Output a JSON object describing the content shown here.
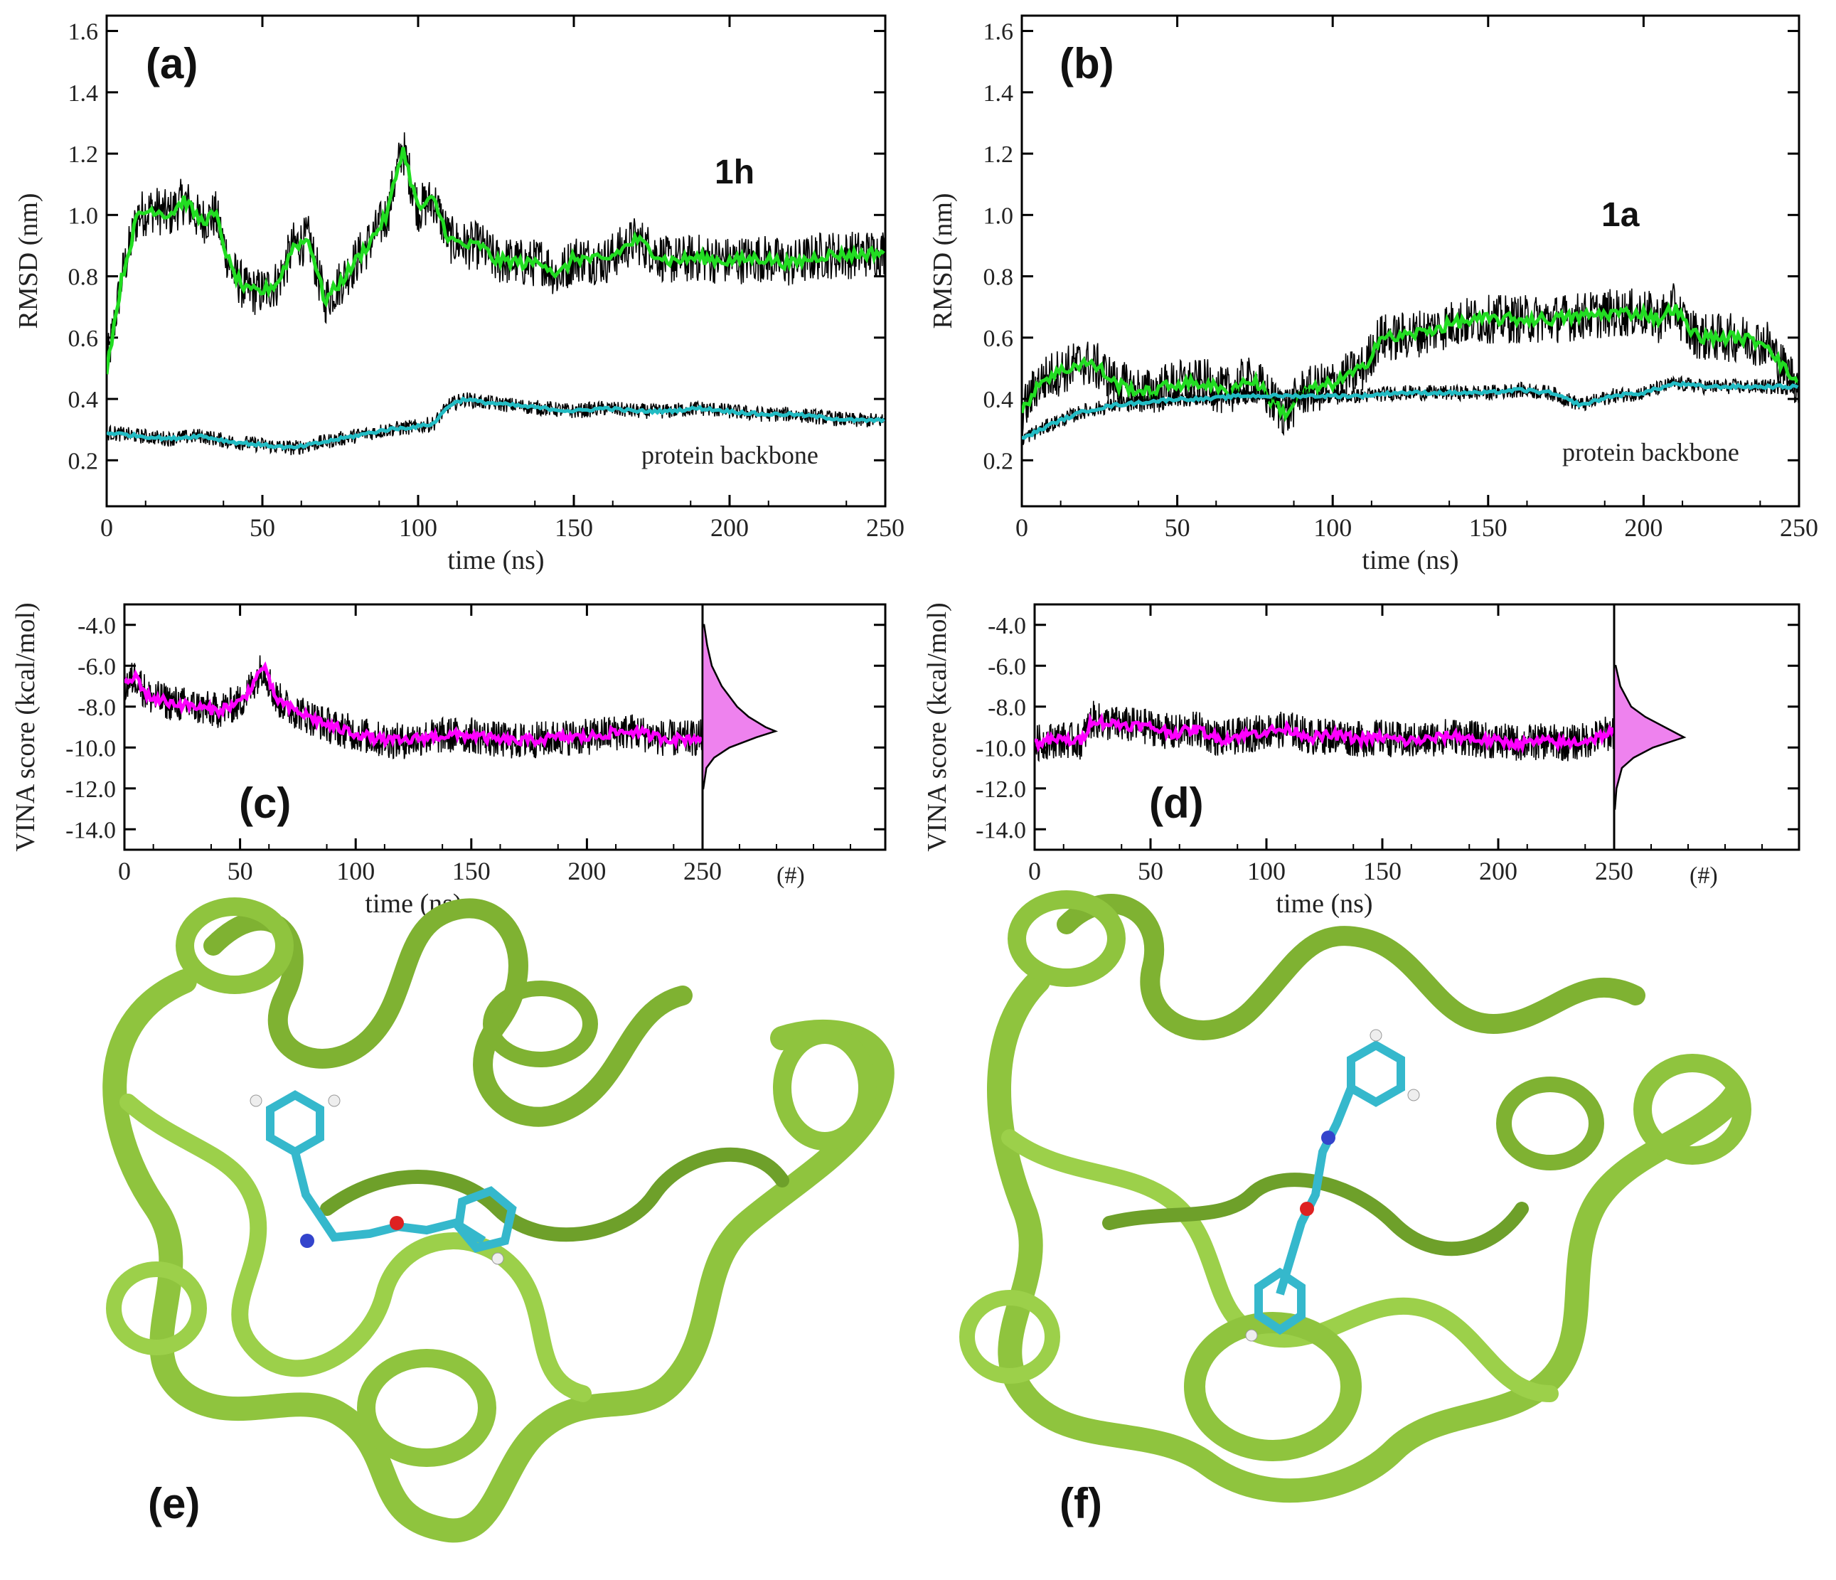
{
  "colors": {
    "raw": "#000000",
    "ligand": "#22dd22",
    "backbone": "#22bcc4",
    "vina": "#ff00ff",
    "hist_fill": "#ee82ee",
    "protein": "#8fc43e",
    "protein_dark": "#5a8a1e",
    "ligand_carbon": "#35b8cc",
    "ligand_n": "#3344cc",
    "ligand_o": "#dd2222",
    "ligand_h": "#eeeeee"
  },
  "panels": {
    "a": {
      "label": "(a)",
      "molecule": "1h",
      "annotation": "protein backbone"
    },
    "b": {
      "label": "(b)",
      "molecule": "1a",
      "annotation": "protein backbone"
    },
    "c": {
      "label": "(c)",
      "hist_label": "(#)"
    },
    "d": {
      "label": "(d)",
      "hist_label": "(#)"
    },
    "e": {
      "label": "(e)"
    },
    "f": {
      "label": "(f)"
    }
  },
  "chart_data": [
    {
      "id": "a",
      "type": "line",
      "xlabel": "time (ns)",
      "ylabel": "RMSD (nm)",
      "xlim": [
        0,
        250
      ],
      "ylim": [
        0.05,
        1.65
      ],
      "xticks": [
        "0",
        "50",
        "100",
        "150",
        "200",
        "250"
      ],
      "yticks": [
        "0.2",
        "0.4",
        "0.6",
        "0.8",
        "1.0",
        "1.2",
        "1.4",
        "1.6"
      ],
      "series": [
        {
          "role": "ligand-raw",
          "x": [
            0,
            5,
            10,
            15,
            20,
            25,
            30,
            35,
            40,
            45,
            50,
            55,
            60,
            65,
            70,
            75,
            80,
            85,
            90,
            95,
            100,
            105,
            110,
            115,
            120,
            125,
            130,
            135,
            140,
            145,
            150,
            160,
            170,
            180,
            190,
            200,
            210,
            220,
            230,
            240,
            250
          ],
          "y": [
            0.5,
            0.8,
            1.0,
            1.02,
            1.0,
            1.05,
            0.98,
            1.0,
            0.82,
            0.75,
            0.75,
            0.78,
            0.9,
            0.92,
            0.72,
            0.78,
            0.85,
            0.92,
            1.0,
            1.22,
            1.02,
            1.05,
            0.92,
            0.9,
            0.9,
            0.85,
            0.85,
            0.84,
            0.85,
            0.8,
            0.86,
            0.85,
            0.92,
            0.85,
            0.86,
            0.85,
            0.86,
            0.84,
            0.87,
            0.87,
            0.88
          ]
        },
        {
          "role": "ligand-avg",
          "x": [
            0,
            5,
            10,
            15,
            20,
            25,
            30,
            35,
            40,
            45,
            50,
            55,
            60,
            65,
            70,
            75,
            80,
            85,
            90,
            95,
            100,
            105,
            110,
            115,
            120,
            125,
            130,
            135,
            140,
            145,
            150,
            160,
            170,
            180,
            190,
            200,
            210,
            220,
            230,
            240,
            250
          ],
          "y": [
            0.5,
            0.8,
            1.0,
            1.02,
            1.0,
            1.05,
            0.98,
            1.0,
            0.82,
            0.75,
            0.75,
            0.78,
            0.9,
            0.92,
            0.72,
            0.78,
            0.85,
            0.92,
            1.0,
            1.22,
            1.02,
            1.05,
            0.92,
            0.9,
            0.9,
            0.85,
            0.85,
            0.84,
            0.85,
            0.8,
            0.86,
            0.85,
            0.92,
            0.85,
            0.86,
            0.85,
            0.86,
            0.84,
            0.87,
            0.87,
            0.88
          ]
        },
        {
          "role": "backbone-raw",
          "x": [
            0,
            10,
            20,
            30,
            40,
            50,
            60,
            70,
            80,
            90,
            100,
            105,
            110,
            115,
            120,
            130,
            140,
            150,
            160,
            170,
            180,
            190,
            200,
            210,
            220,
            230,
            240,
            250
          ],
          "y": [
            0.29,
            0.28,
            0.27,
            0.28,
            0.26,
            0.25,
            0.24,
            0.26,
            0.28,
            0.3,
            0.31,
            0.32,
            0.38,
            0.4,
            0.39,
            0.38,
            0.37,
            0.36,
            0.37,
            0.36,
            0.36,
            0.37,
            0.36,
            0.35,
            0.35,
            0.34,
            0.33,
            0.33
          ]
        },
        {
          "role": "backbone-avg",
          "x": [
            0,
            10,
            20,
            30,
            40,
            50,
            60,
            70,
            80,
            90,
            100,
            105,
            110,
            115,
            120,
            130,
            140,
            150,
            160,
            170,
            180,
            190,
            200,
            210,
            220,
            230,
            240,
            250
          ],
          "y": [
            0.29,
            0.28,
            0.27,
            0.28,
            0.26,
            0.25,
            0.24,
            0.26,
            0.28,
            0.3,
            0.31,
            0.32,
            0.38,
            0.4,
            0.39,
            0.38,
            0.37,
            0.36,
            0.37,
            0.36,
            0.36,
            0.37,
            0.36,
            0.35,
            0.35,
            0.34,
            0.33,
            0.33
          ]
        }
      ]
    },
    {
      "id": "b",
      "type": "line",
      "xlabel": "time (ns)",
      "ylabel": "RMSD (nm)",
      "xlim": [
        0,
        250
      ],
      "ylim": [
        0.05,
        1.65
      ],
      "xticks": [
        "0",
        "50",
        "100",
        "150",
        "200",
        "250"
      ],
      "yticks": [
        "0.2",
        "0.4",
        "0.6",
        "0.8",
        "1.0",
        "1.2",
        "1.4",
        "1.6"
      ],
      "series": [
        {
          "role": "ligand-raw",
          "x": [
            0,
            5,
            10,
            15,
            20,
            25,
            30,
            40,
            50,
            60,
            65,
            70,
            75,
            80,
            85,
            90,
            100,
            110,
            115,
            120,
            130,
            140,
            150,
            160,
            170,
            180,
            190,
            200,
            205,
            210,
            215,
            220,
            230,
            240,
            245,
            250
          ],
          "y": [
            0.35,
            0.45,
            0.48,
            0.5,
            0.52,
            0.5,
            0.45,
            0.42,
            0.45,
            0.45,
            0.42,
            0.45,
            0.46,
            0.4,
            0.35,
            0.42,
            0.45,
            0.5,
            0.6,
            0.6,
            0.62,
            0.65,
            0.66,
            0.66,
            0.66,
            0.67,
            0.68,
            0.68,
            0.66,
            0.7,
            0.62,
            0.6,
            0.6,
            0.58,
            0.5,
            0.45
          ]
        },
        {
          "role": "ligand-avg",
          "x": [
            0,
            5,
            10,
            15,
            20,
            25,
            30,
            40,
            50,
            60,
            65,
            70,
            75,
            80,
            85,
            90,
            100,
            110,
            115,
            120,
            130,
            140,
            150,
            160,
            170,
            180,
            190,
            200,
            205,
            210,
            215,
            220,
            230,
            240,
            245,
            250
          ],
          "y": [
            0.35,
            0.45,
            0.48,
            0.5,
            0.52,
            0.5,
            0.45,
            0.42,
            0.45,
            0.45,
            0.42,
            0.45,
            0.46,
            0.4,
            0.35,
            0.42,
            0.45,
            0.5,
            0.6,
            0.6,
            0.62,
            0.65,
            0.66,
            0.66,
            0.66,
            0.67,
            0.68,
            0.68,
            0.66,
            0.7,
            0.62,
            0.6,
            0.6,
            0.58,
            0.5,
            0.45
          ]
        },
        {
          "role": "backbone-raw",
          "x": [
            0,
            10,
            20,
            30,
            40,
            50,
            60,
            70,
            80,
            90,
            100,
            110,
            120,
            130,
            140,
            150,
            160,
            170,
            180,
            190,
            200,
            210,
            220,
            230,
            240,
            250
          ],
          "y": [
            0.27,
            0.32,
            0.36,
            0.38,
            0.39,
            0.4,
            0.4,
            0.41,
            0.41,
            0.41,
            0.41,
            0.41,
            0.42,
            0.42,
            0.42,
            0.42,
            0.43,
            0.42,
            0.38,
            0.41,
            0.42,
            0.45,
            0.44,
            0.44,
            0.44,
            0.44
          ]
        },
        {
          "role": "backbone-avg",
          "x": [
            0,
            10,
            20,
            30,
            40,
            50,
            60,
            70,
            80,
            90,
            100,
            110,
            120,
            130,
            140,
            150,
            160,
            170,
            180,
            190,
            200,
            210,
            220,
            230,
            240,
            250
          ],
          "y": [
            0.27,
            0.32,
            0.36,
            0.38,
            0.39,
            0.4,
            0.4,
            0.41,
            0.41,
            0.41,
            0.41,
            0.41,
            0.42,
            0.42,
            0.42,
            0.42,
            0.43,
            0.42,
            0.38,
            0.41,
            0.42,
            0.45,
            0.44,
            0.44,
            0.44,
            0.44
          ]
        }
      ]
    },
    {
      "id": "c",
      "type": "line",
      "xlabel": "time (ns)",
      "ylabel": "VINA score (kcal/mol)",
      "xlim": [
        0,
        250
      ],
      "ylim": [
        -15,
        -3
      ],
      "xticks": [
        "0",
        "50",
        "100",
        "150",
        "200",
        "250"
      ],
      "yticks": [
        "-4.0",
        "-6.0",
        "-8.0",
        "-10.0",
        "-12.0",
        "-14.0"
      ],
      "series": [
        {
          "role": "vina-raw",
          "x": [
            0,
            5,
            10,
            20,
            30,
            40,
            50,
            55,
            60,
            65,
            70,
            80,
            90,
            100,
            110,
            120,
            130,
            140,
            150,
            160,
            170,
            180,
            190,
            200,
            210,
            220,
            230,
            240,
            250
          ],
          "y": [
            -7.0,
            -6.5,
            -7.5,
            -7.8,
            -8.0,
            -8.2,
            -7.8,
            -7.0,
            -6.0,
            -7.5,
            -8.0,
            -8.5,
            -9.0,
            -9.3,
            -9.6,
            -9.7,
            -9.5,
            -9.4,
            -9.4,
            -9.6,
            -9.7,
            -9.6,
            -9.5,
            -9.5,
            -9.3,
            -9.2,
            -9.5,
            -9.6,
            -9.5
          ]
        },
        {
          "role": "vina-avg",
          "x": [
            0,
            5,
            10,
            20,
            30,
            40,
            50,
            55,
            60,
            65,
            70,
            80,
            90,
            100,
            110,
            120,
            130,
            140,
            150,
            160,
            170,
            180,
            190,
            200,
            210,
            220,
            230,
            240,
            250
          ],
          "y": [
            -7.0,
            -6.5,
            -7.5,
            -7.8,
            -8.0,
            -8.2,
            -7.8,
            -7.0,
            -6.0,
            -7.5,
            -8.0,
            -8.5,
            -9.0,
            -9.3,
            -9.6,
            -9.7,
            -9.5,
            -9.4,
            -9.4,
            -9.6,
            -9.7,
            -9.6,
            -9.5,
            -9.5,
            -9.3,
            -9.2,
            -9.5,
            -9.6,
            -9.5
          ]
        }
      ],
      "histogram": {
        "y": [
          -4.0,
          -5.0,
          -6.0,
          -7.0,
          -8.0,
          -8.5,
          -9.0,
          -9.2,
          -9.5,
          -10.0,
          -10.5,
          -11.0,
          -12.0
        ],
        "counts": [
          0.02,
          0.06,
          0.12,
          0.25,
          0.45,
          0.6,
          0.82,
          0.95,
          0.7,
          0.35,
          0.15,
          0.05,
          0.01
        ]
      }
    },
    {
      "id": "d",
      "type": "line",
      "xlabel": "time (ns)",
      "ylabel": "VINA score (kcal/mol)",
      "xlim": [
        0,
        250
      ],
      "ylim": [
        -15,
        -3
      ],
      "xticks": [
        "0",
        "50",
        "100",
        "150",
        "200",
        "250"
      ],
      "yticks": [
        "-4.0",
        "-6.0",
        "-8.0",
        "-10.0",
        "-12.0",
        "-14.0"
      ],
      "series": [
        {
          "role": "vina-raw",
          "x": [
            0,
            10,
            20,
            25,
            30,
            40,
            50,
            60,
            70,
            80,
            90,
            100,
            110,
            120,
            130,
            140,
            150,
            160,
            170,
            180,
            190,
            200,
            210,
            220,
            230,
            240,
            250
          ],
          "y": [
            -9.8,
            -9.6,
            -9.7,
            -8.6,
            -8.8,
            -8.9,
            -9.0,
            -9.3,
            -9.1,
            -9.6,
            -9.4,
            -9.2,
            -9.1,
            -9.5,
            -9.4,
            -9.6,
            -9.5,
            -9.7,
            -9.6,
            -9.4,
            -9.6,
            -9.7,
            -9.8,
            -9.7,
            -9.8,
            -9.6,
            -9.2
          ]
        },
        {
          "role": "vina-avg",
          "x": [
            0,
            10,
            20,
            25,
            30,
            40,
            50,
            60,
            70,
            80,
            90,
            100,
            110,
            120,
            130,
            140,
            150,
            160,
            170,
            180,
            190,
            200,
            210,
            220,
            230,
            240,
            250
          ],
          "y": [
            -9.8,
            -9.6,
            -9.7,
            -8.6,
            -8.8,
            -8.9,
            -9.0,
            -9.3,
            -9.1,
            -9.6,
            -9.4,
            -9.2,
            -9.1,
            -9.5,
            -9.4,
            -9.6,
            -9.5,
            -9.7,
            -9.6,
            -9.4,
            -9.6,
            -9.7,
            -9.8,
            -9.7,
            -9.8,
            -9.6,
            -9.2
          ]
        }
      ],
      "histogram": {
        "y": [
          -6.0,
          -7.0,
          -8.0,
          -8.5,
          -9.0,
          -9.5,
          -10.0,
          -10.5,
          -11.0,
          -12.0,
          -13.0
        ],
        "counts": [
          0.02,
          0.08,
          0.22,
          0.4,
          0.65,
          0.9,
          0.5,
          0.25,
          0.1,
          0.03,
          0.01
        ]
      }
    }
  ]
}
